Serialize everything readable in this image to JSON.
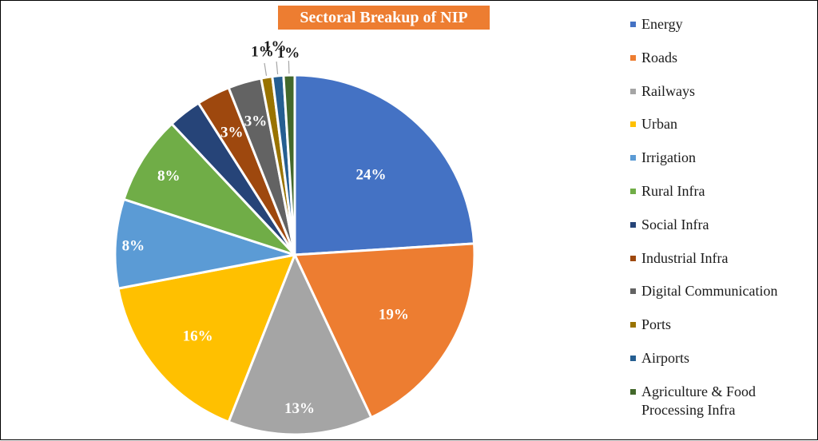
{
  "chart_data": {
    "type": "pie",
    "title": "Sectoral Breakup of NIP",
    "title_background": "#ED7D31",
    "legend_position": "right",
    "slices": [
      {
        "name": "Energy",
        "value": 24,
        "label": "24%",
        "color": "#4472C4"
      },
      {
        "name": "Roads",
        "value": 19,
        "label": "19%",
        "color": "#ED7D31"
      },
      {
        "name": "Railways",
        "value": 13,
        "label": "13%",
        "color": "#A5A5A5"
      },
      {
        "name": "Urban",
        "value": 16,
        "label": "16%",
        "color": "#FFC000"
      },
      {
        "name": "Irrigation",
        "value": 8,
        "label": "8%",
        "color": "#5B9BD5"
      },
      {
        "name": "Rural Infra",
        "value": 8,
        "label": "8%",
        "color": "#70AD47"
      },
      {
        "name": "Social Infra",
        "value": 3,
        "label": "",
        "color": "#264478"
      },
      {
        "name": "Industrial Infra",
        "value": 3,
        "label": "3%",
        "color": "#9E480E"
      },
      {
        "name": "Digital Communication",
        "value": 3,
        "label": "3%",
        "color": "#636363"
      },
      {
        "name": "Ports",
        "value": 1,
        "label": "1%",
        "color": "#997300"
      },
      {
        "name": "Airports",
        "value": 1,
        "label": "1%",
        "color": "#255E91"
      },
      {
        "name": "Agriculture & Food Processing Infra",
        "value": 1,
        "label": "1%",
        "color": "#43682B"
      }
    ]
  }
}
